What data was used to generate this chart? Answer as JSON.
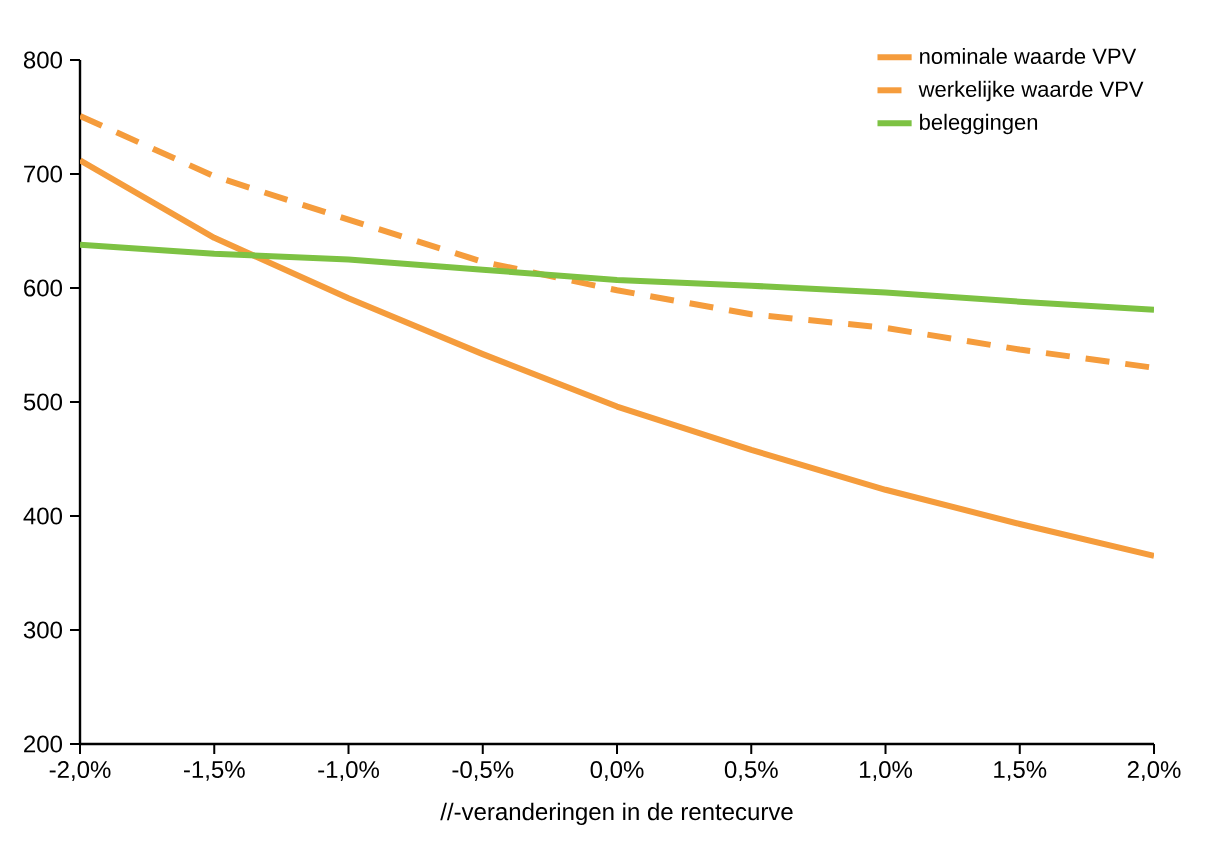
{
  "chart_data": {
    "type": "line",
    "xlabel": "//-veranderingen in de rentecurve",
    "x": [
      -2.0,
      -1.5,
      -1.0,
      -0.5,
      0.0,
      0.5,
      1.0,
      1.5,
      2.0
    ],
    "xlim": [
      -2.0,
      2.0
    ],
    "xticks": [
      {
        "value": -2.0,
        "label": "-2,0%"
      },
      {
        "value": -1.5,
        "label": "-1,5%"
      },
      {
        "value": -1.0,
        "label": "-1,0%"
      },
      {
        "value": -0.5,
        "label": "-0,5%"
      },
      {
        "value": 0.0,
        "label": "0,0%"
      },
      {
        "value": 0.5,
        "label": "0,5%"
      },
      {
        "value": 1.0,
        "label": "1,0%"
      },
      {
        "value": 1.5,
        "label": "1,5%"
      },
      {
        "value": 2.0,
        "label": "2,0%"
      }
    ],
    "ylim": [
      200,
      800
    ],
    "yticks": [
      200,
      300,
      400,
      500,
      600,
      700,
      800
    ],
    "grid": false,
    "legend": "top right",
    "marker": "none",
    "series": [
      {
        "name": "nominale waarde VPV",
        "color": "#f59c3c",
        "line_style": "solid",
        "values": [
          712,
          644,
          591,
          542,
          496,
          458,
          423,
          393,
          365
        ]
      },
      {
        "name": "werkelijke waarde VPV",
        "color": "#f59c3c",
        "line_style": "dashed",
        "values": [
          751,
          698,
          660,
          623,
          598,
          577,
          565,
          546,
          530
        ]
      },
      {
        "name": "beleggingen",
        "color": "#7dc243",
        "line_style": "solid",
        "values": [
          638,
          630,
          625,
          616,
          607,
          602,
          596,
          588,
          581
        ]
      }
    ]
  }
}
